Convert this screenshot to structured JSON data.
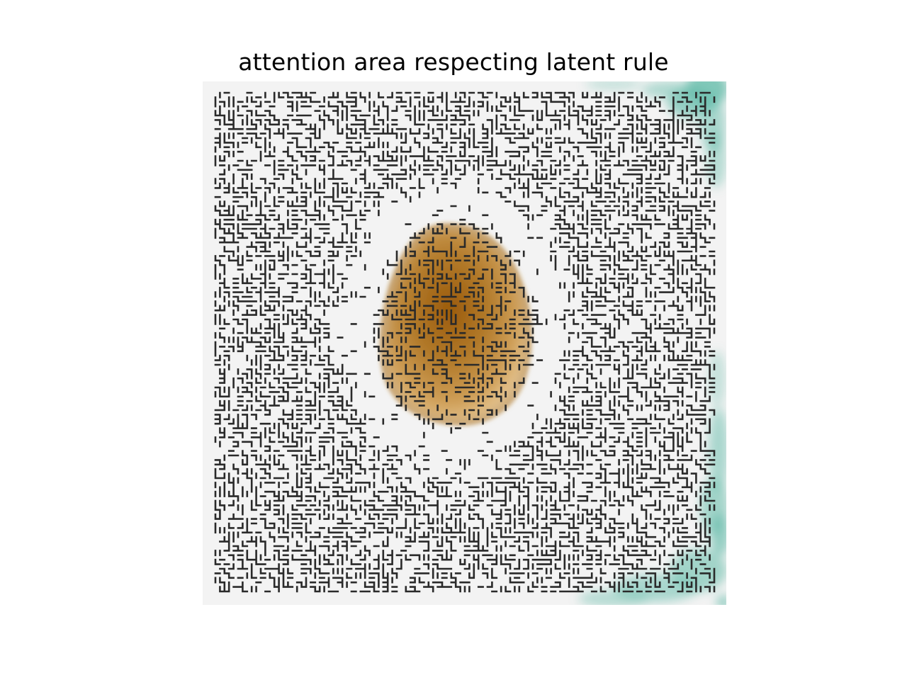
{
  "figure": {
    "title": "attention area respecting latent rule"
  },
  "heatmap": {
    "background": "#f3f3f3",
    "positive_color": "#a66a14",
    "negative_color": "#6cbfae",
    "line_color": "#2a2a2a"
  }
}
